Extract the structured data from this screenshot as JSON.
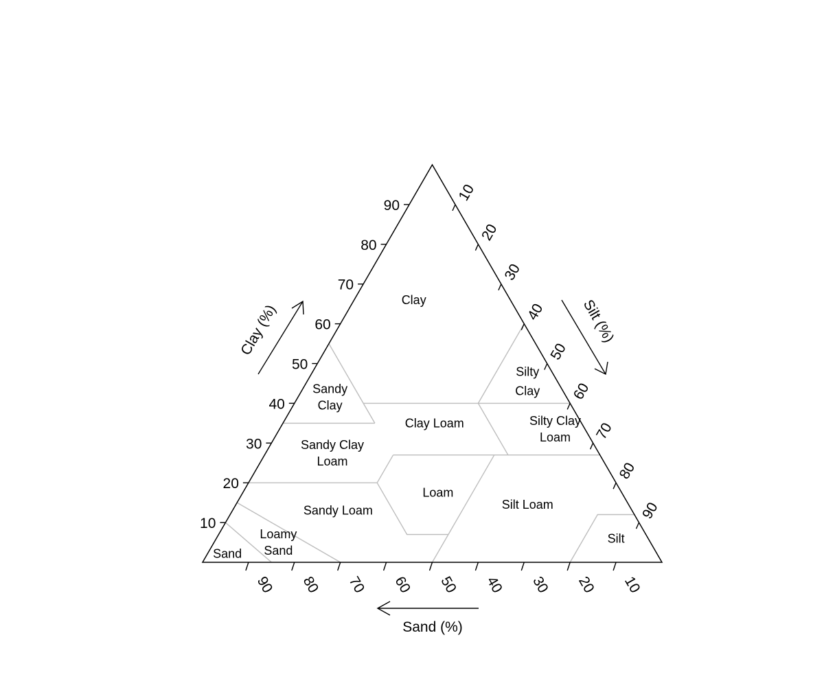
{
  "axes": {
    "clay": {
      "title": "Clay (%)",
      "ticks": [
        {
          "value": 10,
          "label": "10"
        },
        {
          "value": 20,
          "label": "20"
        },
        {
          "value": 30,
          "label": "30"
        },
        {
          "value": 40,
          "label": "40"
        },
        {
          "value": 50,
          "label": "50"
        },
        {
          "value": 60,
          "label": "60"
        },
        {
          "value": 70,
          "label": "70"
        },
        {
          "value": 80,
          "label": "80"
        },
        {
          "value": 90,
          "label": "90"
        }
      ]
    },
    "silt": {
      "title": "Silt (%)",
      "ticks": [
        {
          "value": 10,
          "label": "10"
        },
        {
          "value": 20,
          "label": "20"
        },
        {
          "value": 30,
          "label": "30"
        },
        {
          "value": 40,
          "label": "40"
        },
        {
          "value": 50,
          "label": "50"
        },
        {
          "value": 60,
          "label": "60"
        },
        {
          "value": 70,
          "label": "70"
        },
        {
          "value": 80,
          "label": "80"
        },
        {
          "value": 90,
          "label": "90"
        }
      ]
    },
    "sand": {
      "title": "Sand (%)",
      "ticks": [
        {
          "value": 90,
          "label": "90"
        },
        {
          "value": 80,
          "label": "80"
        },
        {
          "value": 70,
          "label": "70"
        },
        {
          "value": 60,
          "label": "60"
        },
        {
          "value": 50,
          "label": "50"
        },
        {
          "value": 40,
          "label": "40"
        },
        {
          "value": 30,
          "label": "30"
        },
        {
          "value": 20,
          "label": "20"
        },
        {
          "value": 10,
          "label": "10"
        }
      ]
    }
  },
  "regions": [
    {
      "id": "clay",
      "lines": [
        "Clay"
      ],
      "clay": 66,
      "sand": 21
    },
    {
      "id": "sandy-clay",
      "lines": [
        "Sandy",
        "Clay"
      ],
      "clay": 41.5,
      "sand": 51.5
    },
    {
      "id": "silty-clay",
      "lines": [
        "Silty",
        "Clay"
      ],
      "clay": 45.5,
      "sand": 6.5
    },
    {
      "id": "clay-loam",
      "lines": [
        "Clay Loam"
      ],
      "clay": 35,
      "sand": 32
    },
    {
      "id": "silty-clay-loam",
      "lines": [
        "Silty Clay",
        "Loam"
      ],
      "clay": 33.5,
      "sand": 6.5
    },
    {
      "id": "sandy-clay-loam",
      "lines": [
        "Sandy Clay",
        "Loam"
      ],
      "clay": 27.5,
      "sand": 58
    },
    {
      "id": "loam",
      "lines": [
        "Loam"
      ],
      "clay": 17.5,
      "sand": 40
    },
    {
      "id": "silt-loam",
      "lines": [
        "Silt Loam"
      ],
      "clay": 14.5,
      "sand": 22
    },
    {
      "id": "sandy-loam",
      "lines": [
        "Sandy Loam"
      ],
      "clay": 13,
      "sand": 64
    },
    {
      "id": "loamy-sand",
      "lines": [
        "Loamy",
        "Sand"
      ],
      "clay": 5,
      "sand": 81
    },
    {
      "id": "sand",
      "lines": [
        "Sand"
      ],
      "clay": 2.2,
      "sand": 93.5
    },
    {
      "id": "silt",
      "lines": [
        "Silt"
      ],
      "clay": 6,
      "sand": 7
    }
  ],
  "boundaries": [
    [
      {
        "clay": 55,
        "sand": 45
      },
      {
        "clay": 35,
        "sand": 45
      }
    ],
    [
      {
        "clay": 40,
        "sand": 45
      },
      {
        "clay": 40,
        "sand": 20
      },
      {
        "clay": 60,
        "sand": 0
      }
    ],
    [
      {
        "clay": 35,
        "sand": 65
      },
      {
        "clay": 35,
        "sand": 45
      }
    ],
    [
      {
        "clay": 27,
        "sand": 45
      },
      {
        "clay": 27,
        "sand": 20
      },
      {
        "clay": 40,
        "sand": 20
      }
    ],
    [
      {
        "clay": 40,
        "sand": 20
      },
      {
        "clay": 40,
        "sand": 0
      }
    ],
    [
      {
        "clay": 27,
        "sand": 20
      },
      {
        "clay": 27,
        "sand": 0
      }
    ],
    [
      {
        "clay": 20,
        "sand": 80
      },
      {
        "clay": 20,
        "sand": 52
      },
      {
        "clay": 27,
        "sand": 45
      }
    ],
    [
      {
        "clay": 20,
        "sand": 52
      },
      {
        "clay": 7,
        "sand": 52
      },
      {
        "clay": 7,
        "sand": 43
      },
      {
        "clay": 27,
        "sand": 23
      }
    ],
    [
      {
        "clay": 7,
        "sand": 43
      },
      {
        "clay": 0,
        "sand": 50
      }
    ],
    [
      {
        "clay": 15,
        "sand": 85
      },
      {
        "clay": 0,
        "sand": 70
      }
    ],
    [
      {
        "clay": 10,
        "sand": 90
      },
      {
        "clay": 0,
        "sand": 85
      }
    ],
    [
      {
        "clay": 0,
        "sand": 20
      },
      {
        "clay": 12,
        "sand": 8
      },
      {
        "clay": 12,
        "sand": 0
      }
    ]
  ]
}
